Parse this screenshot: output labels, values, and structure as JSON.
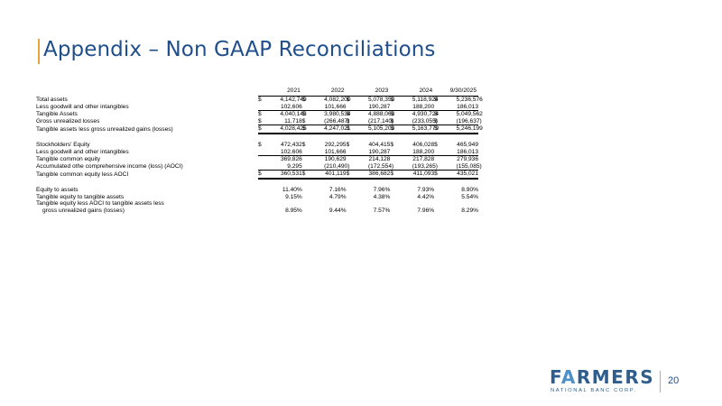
{
  "title": "Appendix – Non GAAP Reconciliations",
  "years": [
    "2021",
    "2022",
    "2023",
    "2024",
    "9/30/2025"
  ],
  "rows": [
    {
      "label": "Total assets",
      "values": [
        "4,142,749",
        "4,082,200",
        "5,078,350",
        "5,118,924",
        "5,236,576"
      ],
      "dollar": true,
      "style": ""
    },
    {
      "label": "Less goodwill and other intangibles",
      "values": [
        "102,606",
        "101,666",
        "190,287",
        "188,200",
        "186,013"
      ],
      "dollar": false,
      "style": "ul"
    },
    {
      "label": "Tangible Assets",
      "values": [
        "4,040,143",
        "3,980,534",
        "4,888,063",
        "4,930,724",
        "5,049,562"
      ],
      "dollar": true,
      "style": ""
    },
    {
      "label": "Gross unrealized losses",
      "values": [
        "11,718",
        "(266,487)",
        "(217,140)",
        "(233,055)",
        "(196,637)"
      ],
      "dollar": true,
      "style": "ul"
    },
    {
      "label": "Tangible assets less gross unrealized gains (losses)",
      "values": [
        "4,028,425",
        "4,247,021",
        "5,105,203",
        "5,163,779",
        "5,246,199"
      ],
      "dollar": true,
      "style": "dul"
    },
    {
      "gap": true
    },
    {
      "label": "Stockholders' Equity",
      "values": [
        "472,432",
        "292,295",
        "404,415",
        "406,028",
        "465,949"
      ],
      "dollar": true,
      "style": ""
    },
    {
      "label": "Less goodwill and other intangibles",
      "values": [
        "102,606",
        "101,666",
        "190,287",
        "188,200",
        "186,013"
      ],
      "dollar": false,
      "style": "ul"
    },
    {
      "label": "Tangible common equity",
      "values": [
        "369,826",
        "190,629",
        "214,128",
        "217,828",
        "279,936"
      ],
      "dollar": false,
      "style": ""
    },
    {
      "label": "Accumulated othe comprehensive income (loss) (AOCI)",
      "values": [
        "9,295",
        "(210,490)",
        "(172,554)",
        "(193,265)",
        "(155,085)"
      ],
      "dollar": false,
      "style": "ul"
    },
    {
      "label": "Tangible common equity less AOCI",
      "values": [
        "360,531",
        "401,119",
        "386,682",
        "411,093",
        "435,021"
      ],
      "dollar": true,
      "style": "dul"
    },
    {
      "gap": true
    },
    {
      "label": "Equity to assets",
      "values": [
        "11.40%",
        "7.16%",
        "7.96%",
        "7.93%",
        "8.90%"
      ],
      "dollar": false,
      "style": ""
    },
    {
      "label": "Tangible equity to tangible assets",
      "values": [
        "9.15%",
        "4.79%",
        "4.38%",
        "4.42%",
        "5.54%"
      ],
      "dollar": false,
      "style": ""
    },
    {
      "label": "Tangible equity less AOCI to tangible assets less",
      "values": [
        "",
        "",
        "",
        "",
        ""
      ],
      "dollar": false,
      "style": ""
    },
    {
      "label": "gross unrealized gains (losses)",
      "values": [
        "8.95%",
        "9.44%",
        "7.57%",
        "7.96%",
        "8.29%"
      ],
      "dollar": false,
      "style": "",
      "indent": true
    }
  ],
  "currency_symbol": "$",
  "logo": {
    "main_pre": "F",
    "main_accent": "A",
    "main_post": "RMERS",
    "sub": "NATIONAL BANC CORP."
  },
  "page_number": "20"
}
